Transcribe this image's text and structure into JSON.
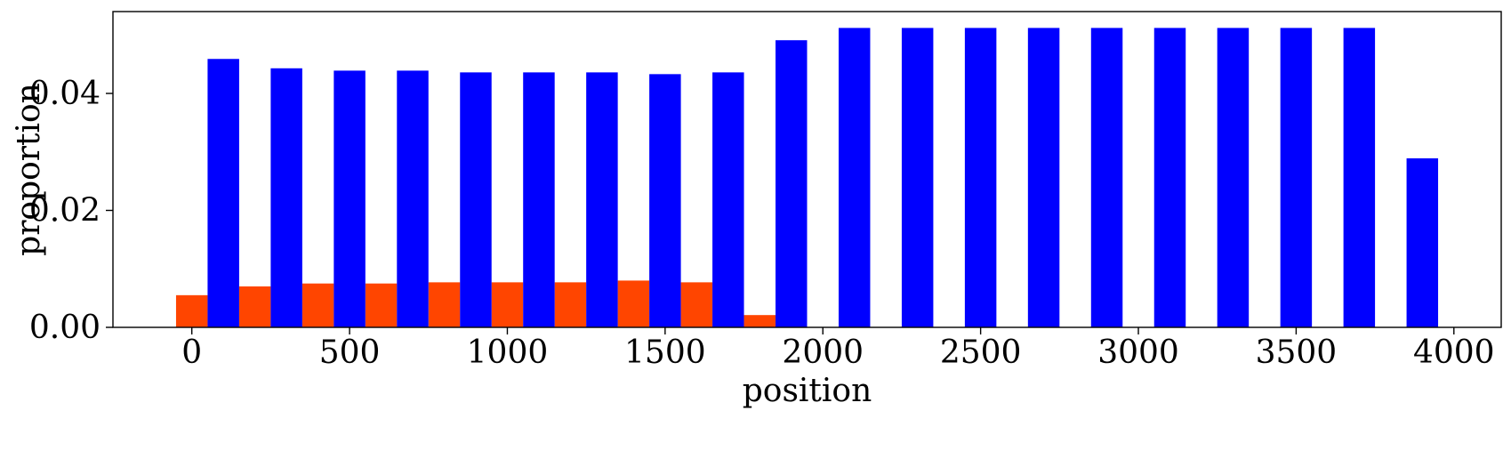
{
  "chart_data": {
    "type": "bar",
    "xlabel": "position",
    "ylabel": "proportion",
    "xlim": [
      -250,
      4150
    ],
    "ylim": [
      0,
      0.054
    ],
    "xticks": [
      0,
      500,
      1000,
      1500,
      2000,
      2500,
      3000,
      3500,
      4000
    ],
    "xtick_labels": [
      "0",
      "500",
      "1000",
      "1500",
      "2000",
      "2500",
      "3000",
      "3500",
      "4000"
    ],
    "yticks": [
      0.0,
      0.02,
      0.04
    ],
    "ytick_labels": [
      "0.00",
      "0.02",
      "0.04"
    ],
    "bar_width": 100,
    "grid": false,
    "legend": "none",
    "series": [
      {
        "color": "#FF4500",
        "x": [
          0,
          200,
          400,
          600,
          800,
          1000,
          1200,
          1400,
          1600,
          1800
        ],
        "values": [
          0.0055,
          0.007,
          0.0075,
          0.0075,
          0.0077,
          0.0077,
          0.0077,
          0.008,
          0.0077,
          0.0021
        ]
      },
      {
        "color": "#0000FF",
        "x": [
          100,
          300,
          500,
          700,
          900,
          1100,
          1300,
          1500,
          1700,
          1900,
          2100,
          2300,
          2500,
          2700,
          2900,
          3100,
          3300,
          3500,
          3700,
          3900
        ],
        "values": [
          0.0459,
          0.0443,
          0.0439,
          0.0439,
          0.0436,
          0.0436,
          0.0436,
          0.0433,
          0.0436,
          0.0491,
          0.0512,
          0.0512,
          0.0512,
          0.0512,
          0.0512,
          0.0512,
          0.0512,
          0.0512,
          0.0512,
          0.0289
        ]
      }
    ]
  }
}
